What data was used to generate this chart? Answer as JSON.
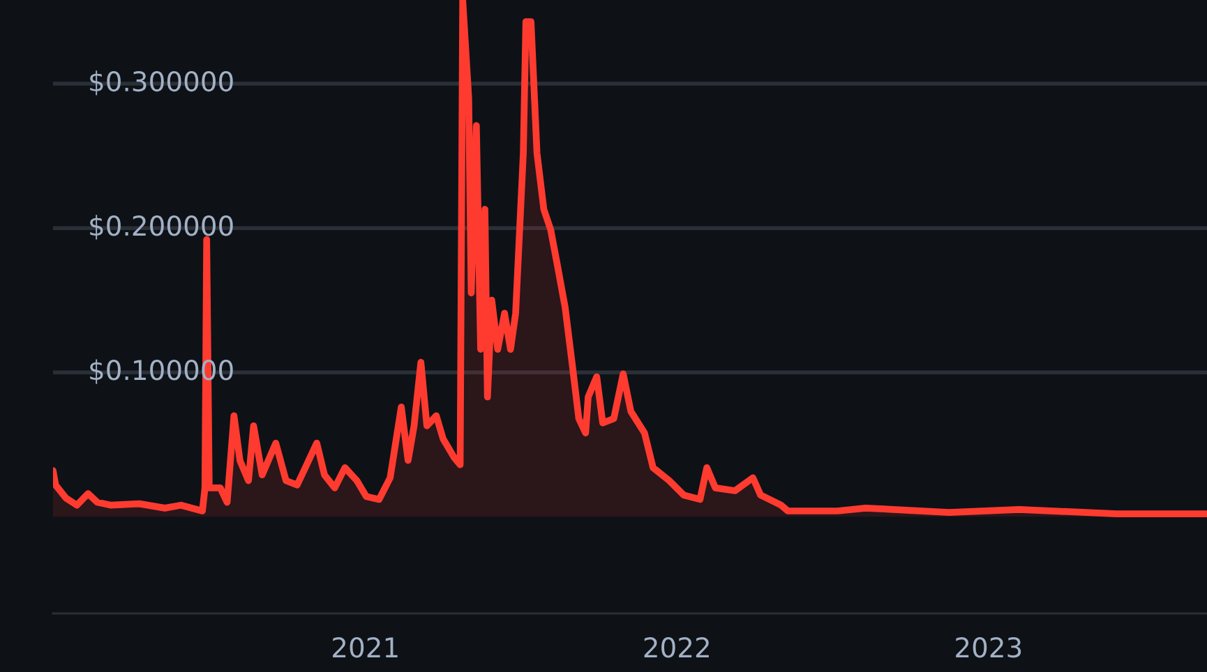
{
  "chart_data": {
    "type": "area",
    "color": "#ff3b30",
    "x": [
      "2020-01-01",
      "2020-01-04",
      "2020-01-16",
      "2020-01-29",
      "2020-02-11",
      "2020-02-22",
      "2020-03-09",
      "2020-04-11",
      "2020-05-11",
      "2020-05-30",
      "2020-06-24",
      "2020-06-27",
      "2020-06-29",
      "2020-07-02",
      "2020-07-15",
      "2020-07-23",
      "2020-07-31",
      "2020-08-07",
      "2020-08-17",
      "2020-08-23",
      "2020-09-02",
      "2020-09-18",
      "2020-09-30",
      "2020-10-13",
      "2020-10-21",
      "2020-11-05",
      "2020-11-14",
      "2020-11-26",
      "2020-12-08",
      "2020-12-22",
      "2021-01-02",
      "2021-01-17",
      "2021-01-30",
      "2021-02-12",
      "2021-02-20",
      "2021-02-27",
      "2021-03-07",
      "2021-03-14",
      "2021-03-25",
      "2021-04-02",
      "2021-04-15",
      "2021-04-22",
      "2021-04-25",
      "2021-05-02",
      "2021-05-05",
      "2021-05-11",
      "2021-05-16",
      "2021-05-21",
      "2021-05-24",
      "2021-05-29",
      "2021-06-05",
      "2021-06-13",
      "2021-06-20",
      "2021-06-26",
      "2021-07-05",
      "2021-07-08",
      "2021-07-14",
      "2021-07-21",
      "2021-07-29",
      "2021-08-06",
      "2021-08-14",
      "2021-08-23",
      "2021-08-31",
      "2021-09-08",
      "2021-09-16",
      "2021-09-19",
      "2021-09-29",
      "2021-10-06",
      "2021-10-19",
      "2021-10-30",
      "2021-11-08",
      "2021-11-24",
      "2021-12-04",
      "2021-12-23",
      "2022-01-09",
      "2022-01-28",
      "2022-02-05",
      "2022-02-15",
      "2022-03-10",
      "2022-03-31",
      "2022-04-09",
      "2022-05-03",
      "2022-05-11",
      "2022-07-08",
      "2022-08-10",
      "2022-11-16",
      "2023-02-06",
      "2023-05-31",
      "2023-09-14"
    ],
    "values": [
      0.032,
      0.022,
      0.013,
      0.008,
      0.016,
      0.01,
      0.008,
      0.009,
      0.006,
      0.008,
      0.004,
      0.02,
      0.192,
      0.02,
      0.02,
      0.01,
      0.07,
      0.039,
      0.025,
      0.063,
      0.029,
      0.051,
      0.025,
      0.022,
      0.032,
      0.051,
      0.029,
      0.02,
      0.034,
      0.025,
      0.014,
      0.012,
      0.027,
      0.076,
      0.039,
      0.063,
      0.107,
      0.063,
      0.07,
      0.054,
      0.041,
      0.036,
      0.358,
      0.29,
      0.155,
      0.271,
      0.116,
      0.213,
      0.083,
      0.15,
      0.116,
      0.141,
      0.116,
      0.141,
      0.252,
      0.343,
      0.343,
      0.252,
      0.213,
      0.199,
      0.174,
      0.145,
      0.107,
      0.068,
      0.058,
      0.083,
      0.097,
      0.065,
      0.068,
      0.099,
      0.073,
      0.058,
      0.034,
      0.025,
      0.015,
      0.012,
      0.034,
      0.02,
      0.018,
      0.027,
      0.015,
      0.008,
      0.004,
      0.004,
      0.006,
      0.003,
      0.005,
      0.002,
      0.002
    ],
    "xlim": [
      "2020-01-01",
      "2023-09-14"
    ],
    "xticks": [
      {
        "value": "2021-01-01",
        "label": "2021"
      },
      {
        "value": "2022-01-01",
        "label": "2022"
      },
      {
        "value": "2023-01-01",
        "label": "2023"
      }
    ],
    "ylim": [
      -0.067,
      0.358
    ],
    "yticks": [
      {
        "value": 0.1,
        "label": "$0.100000"
      },
      {
        "value": 0.2,
        "label": "$0.200000"
      },
      {
        "value": 0.3,
        "label": "$0.300000"
      }
    ],
    "grid": "y"
  }
}
